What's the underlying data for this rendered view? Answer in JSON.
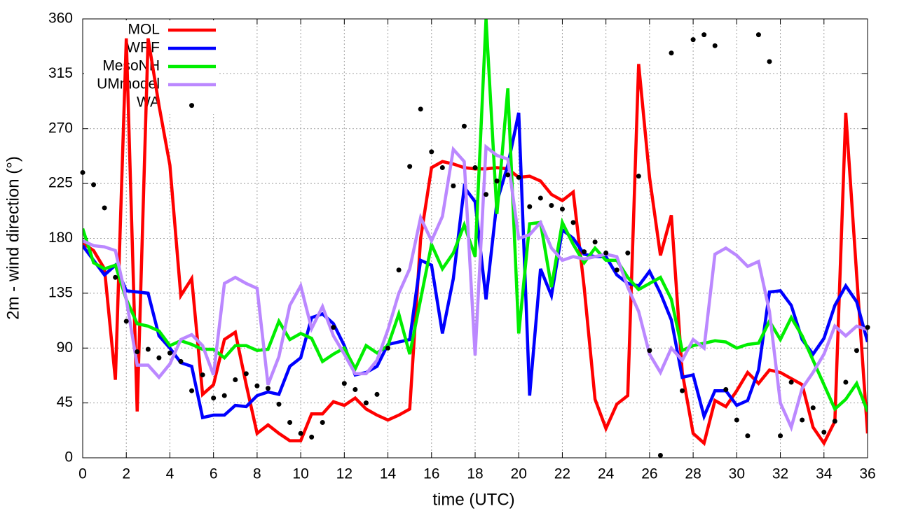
{
  "chart_data": {
    "type": "line",
    "xlabel": "time (UTC)",
    "ylabel": "2m - wind direction (°)",
    "xlim": [
      0,
      36
    ],
    "ylim": [
      0,
      360
    ],
    "xticks": [
      0,
      2,
      4,
      6,
      8,
      10,
      12,
      14,
      16,
      18,
      20,
      22,
      24,
      26,
      28,
      30,
      32,
      34,
      36
    ],
    "yticks": [
      0,
      45,
      90,
      135,
      180,
      225,
      270,
      315,
      360
    ],
    "grid": true,
    "legend": "top-left",
    "x": [
      0,
      0.5,
      1,
      1.5,
      2,
      2.5,
      3,
      3.5,
      4,
      4.5,
      5,
      5.5,
      6,
      6.5,
      7,
      7.5,
      8,
      8.5,
      9,
      9.5,
      10,
      10.5,
      11,
      11.5,
      12,
      12.5,
      13,
      13.5,
      14,
      14.5,
      15,
      15.5,
      16,
      16.5,
      17,
      17.5,
      18,
      18.5,
      19,
      19.5,
      20,
      20.5,
      21,
      21.5,
      22,
      22.5,
      23,
      23.5,
      24,
      24.5,
      25,
      25.5,
      26,
      26.5,
      27,
      27.5,
      28,
      28.5,
      29,
      29.5,
      30,
      30.5,
      31,
      31.5,
      32,
      32.5,
      33,
      33.5,
      34,
      34.5,
      35,
      35.5,
      36
    ],
    "series": [
      {
        "name": "MOL",
        "color": "#ff0000",
        "type": "line",
        "values": [
          176,
          170,
          155,
          64,
          344,
          38,
          344,
          289,
          240,
          133,
          147,
          52,
          60,
          97,
          103,
          60,
          20,
          27,
          20,
          14,
          14,
          36,
          36,
          46,
          43,
          49,
          40,
          35,
          31,
          35,
          40,
          180,
          238,
          243,
          241,
          238,
          237,
          237,
          238,
          237,
          230,
          231,
          227,
          216,
          211,
          218,
          140,
          48,
          24,
          44,
          51,
          323,
          230,
          166,
          199,
          70,
          20,
          12,
          47,
          42,
          55,
          70,
          61,
          72,
          70,
          65,
          60,
          25,
          12,
          30,
          283,
          150,
          20
        ]
      },
      {
        "name": "WRF",
        "color": "#0000ff",
        "type": "line",
        "values": [
          174,
          162,
          150,
          158,
          137,
          136,
          135,
          100,
          90,
          78,
          75,
          33,
          35,
          35,
          43,
          42,
          51,
          54,
          52,
          75,
          82,
          115,
          118,
          110,
          92,
          68,
          70,
          75,
          93,
          95,
          97,
          162,
          158,
          102,
          147,
          222,
          210,
          130,
          210,
          240,
          283,
          51,
          155,
          133,
          187,
          180,
          167,
          165,
          165,
          150,
          143,
          141,
          153,
          135,
          113,
          66,
          68,
          34,
          55,
          55,
          43,
          47,
          72,
          136,
          137,
          125,
          97,
          85,
          98,
          125,
          141,
          128,
          95
        ]
      },
      {
        "name": "MesoNH",
        "color": "#00ee00",
        "type": "line",
        "values": [
          188,
          160,
          155,
          158,
          130,
          110,
          108,
          104,
          92,
          96,
          93,
          89,
          89,
          82,
          92,
          92,
          88,
          89,
          112,
          97,
          102,
          98,
          79,
          85,
          90,
          73,
          92,
          86,
          92,
          118,
          85,
          130,
          175,
          155,
          168,
          191,
          165,
          360,
          200,
          303,
          102,
          192,
          193,
          140,
          193,
          175,
          160,
          172,
          162,
          162,
          148,
          138,
          143,
          148,
          130,
          88,
          92,
          94,
          96,
          95,
          90,
          93,
          94,
          112,
          97,
          115,
          100,
          80,
          60,
          40,
          48,
          61,
          38
        ]
      },
      {
        "name": "UMmodel",
        "color": "#bb88ff",
        "type": "line",
        "values": [
          178,
          174,
          173,
          170,
          130,
          76,
          76,
          66,
          77,
          97,
          101,
          92,
          68,
          143,
          148,
          143,
          139,
          60,
          83,
          125,
          141,
          106,
          124,
          100,
          85,
          69,
          69,
          80,
          105,
          135,
          155,
          197,
          178,
          198,
          253,
          243,
          84,
          255,
          248,
          245,
          180,
          183,
          193,
          172,
          162,
          165,
          163,
          165,
          167,
          165,
          140,
          120,
          85,
          70,
          90,
          80,
          97,
          90,
          167,
          172,
          166,
          157,
          161,
          120,
          45,
          25,
          57,
          70,
          85,
          108,
          100,
          108,
          105
        ]
      },
      {
        "name": "WA",
        "color": "#000000",
        "type": "scatter",
        "x": [
          0,
          0.5,
          1,
          1.5,
          2,
          2.5,
          3,
          3.5,
          4,
          4.5,
          5,
          5,
          5.5,
          6,
          6.5,
          7,
          7.5,
          8,
          8.5,
          9,
          9.5,
          10,
          10.5,
          11,
          11.5,
          12,
          12.5,
          13,
          13.5,
          14,
          14.5,
          15,
          15.5,
          16,
          16.5,
          17,
          17.5,
          18,
          18.5,
          19,
          19.5,
          20,
          20.5,
          21,
          21.5,
          22,
          22.5,
          23,
          23.5,
          24,
          24.5,
          25,
          25.5,
          26,
          26.5,
          27,
          27.5,
          28,
          28.5,
          29,
          29.5,
          30,
          30.5,
          31,
          31.5,
          32,
          32.5,
          33,
          33.5,
          34,
          34.5,
          35,
          35.5,
          36
        ],
        "values": [
          234,
          224,
          205,
          148,
          112,
          87,
          89,
          82,
          86,
          79,
          289,
          55,
          68,
          49,
          51,
          64,
          69,
          59,
          57,
          44,
          29,
          20,
          17,
          29,
          107,
          61,
          56,
          45,
          52,
          90,
          154,
          239,
          286,
          251,
          238,
          223,
          272,
          238,
          216,
          227,
          232,
          230,
          206,
          213,
          207,
          204,
          193,
          169,
          177,
          168,
          154,
          168,
          231,
          88,
          2,
          332,
          55,
          343,
          347,
          338,
          56,
          31,
          18,
          347,
          325,
          18,
          62,
          31,
          41,
          21,
          30,
          62,
          88,
          107
        ]
      }
    ]
  }
}
